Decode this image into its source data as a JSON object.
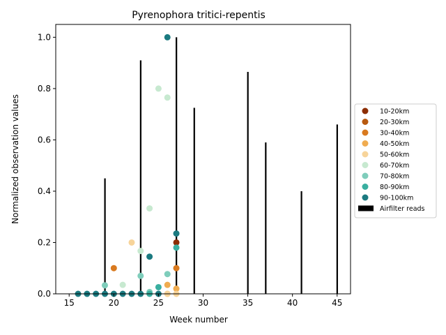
{
  "chart_data": {
    "type": "scatter",
    "title": "Pyrenophora tritici-repentis",
    "xlabel": "Week number",
    "ylabel": "Normalized observation values",
    "xlim": [
      13.5,
      46.5
    ],
    "ylim": [
      0,
      1.05
    ],
    "xticks": [
      15,
      20,
      25,
      30,
      35,
      40,
      45
    ],
    "yticks": [
      0.0,
      0.2,
      0.4,
      0.6,
      0.8,
      1.0
    ],
    "xtick_labels": [
      "15",
      "20",
      "25",
      "30",
      "35",
      "40",
      "45"
    ],
    "ytick_labels": [
      "0.0",
      "0.2",
      "0.4",
      "0.6",
      "0.8",
      "1.0"
    ],
    "grid": false,
    "legend_position": "center-right outside",
    "bars": {
      "name": "Airfilter reads",
      "color": "#000000",
      "x": [
        19,
        23,
        27,
        29,
        35,
        37,
        41,
        45
      ],
      "values": [
        0.45,
        0.91,
        1.0,
        0.725,
        0.865,
        0.59,
        0.4,
        0.66
      ]
    },
    "series": [
      {
        "name": "10-20km",
        "color": "#8c2d04",
        "points": [
          [
            27,
            0.2
          ]
        ]
      },
      {
        "name": "20-30km",
        "color": "#b85a10",
        "points": []
      },
      {
        "name": "30-40km",
        "color": "#d97a1f",
        "points": [
          [
            20,
            0.1
          ],
          [
            27,
            0.1
          ]
        ]
      },
      {
        "name": "40-50km",
        "color": "#f0ac50",
        "points": [
          [
            26,
            0.035
          ],
          [
            27,
            0.02
          ],
          [
            26,
            0.0
          ]
        ]
      },
      {
        "name": "50-60km",
        "color": "#f7d49a",
        "points": [
          [
            22,
            0.2
          ],
          [
            26,
            0.0
          ],
          [
            27,
            0.0
          ]
        ]
      },
      {
        "name": "60-70km",
        "color": "#c7e9d0",
        "points": [
          [
            25,
            0.8
          ],
          [
            26,
            0.765
          ],
          [
            24,
            0.333
          ],
          [
            23,
            0.167
          ],
          [
            21,
            0.035
          ]
        ]
      },
      {
        "name": "70-80km",
        "color": "#7fcdbb",
        "points": [
          [
            26,
            0.077
          ],
          [
            19,
            0.033
          ],
          [
            23,
            0.07
          ],
          [
            24,
            0.007
          ]
        ]
      },
      {
        "name": "80-90km",
        "color": "#3aafa0",
        "points": [
          [
            27,
            0.18
          ],
          [
            25,
            0.026
          ],
          [
            24,
            0.0
          ]
        ]
      },
      {
        "name": "90-100km",
        "color": "#1b7a80",
        "points": [
          [
            26,
            1.0
          ],
          [
            27,
            0.235
          ],
          [
            24,
            0.145
          ],
          [
            16,
            0.0
          ],
          [
            17,
            0.0
          ],
          [
            18,
            0.0
          ],
          [
            19,
            0.0
          ],
          [
            20,
            0.0
          ],
          [
            21,
            0.0
          ],
          [
            22,
            0.0
          ],
          [
            23,
            0.0
          ],
          [
            25,
            0.0
          ]
        ]
      }
    ]
  }
}
